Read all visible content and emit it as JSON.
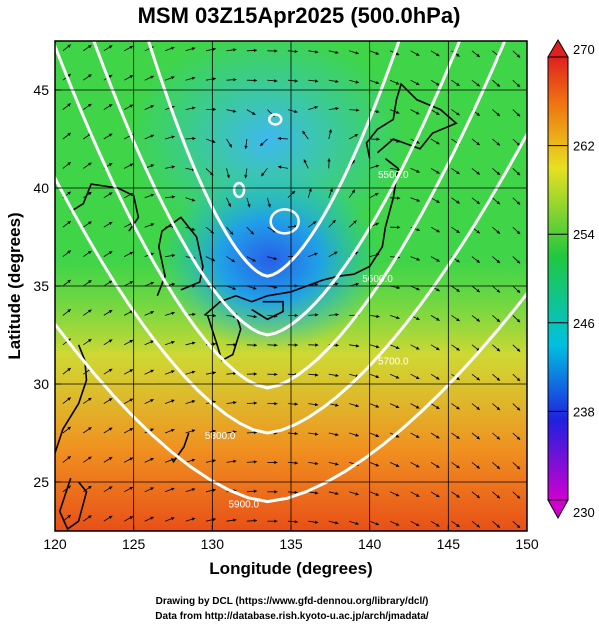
{
  "chart_data": {
    "type": "heatmap",
    "title": "MSM 03Z15Apr2025 (500.0hPa)",
    "xlabel": "Longitude (degrees)",
    "ylabel": "Latitude  (degrees)",
    "xlim": [
      120,
      150
    ],
    "ylim": [
      22.5,
      47.5
    ],
    "xticks": [
      "120",
      "125",
      "130",
      "135",
      "140",
      "145",
      "150"
    ],
    "yticks": [
      "25",
      "30",
      "35",
      "40",
      "45"
    ],
    "colorbar": {
      "min": 230,
      "max": 270,
      "ticks": [
        "230",
        "238",
        "246",
        "254",
        "262",
        "270"
      ],
      "colors": [
        "#d000d0",
        "#2020e0",
        "#00c0e0",
        "#20c840",
        "#e8e020",
        "#f07010",
        "#e02020"
      ]
    },
    "temperature_field": {
      "background": 256,
      "cold_cores": [
        {
          "lon": 134.5,
          "lat": 38.5,
          "value": 242
        },
        {
          "lon": 133.5,
          "lat": 43.5,
          "value": 248
        }
      ],
      "warm_gradient": {
        "south_lat": 25,
        "value": 266
      }
    },
    "height_contours": [
      {
        "label": "5500.0",
        "lon": 141.5,
        "lat": 40.5
      },
      {
        "label": "5600.0",
        "lon": 140.5,
        "lat": 35.2
      },
      {
        "label": "5700.0",
        "lon": 141.5,
        "lat": 31.0
      },
      {
        "label": "5800.0",
        "lon": 130.5,
        "lat": 27.2
      },
      {
        "label": "5900.0",
        "lon": 132.0,
        "lat": 23.7
      }
    ],
    "grid": true,
    "wind_vectors": true,
    "coastlines": true
  },
  "credits": {
    "drawing": "Drawing by DCL (https://www.gfd-dennou.org/library/dcl/)",
    "data": "Data from http://database.rish.kyoto-u.ac.jp/arch/jmadata/"
  }
}
